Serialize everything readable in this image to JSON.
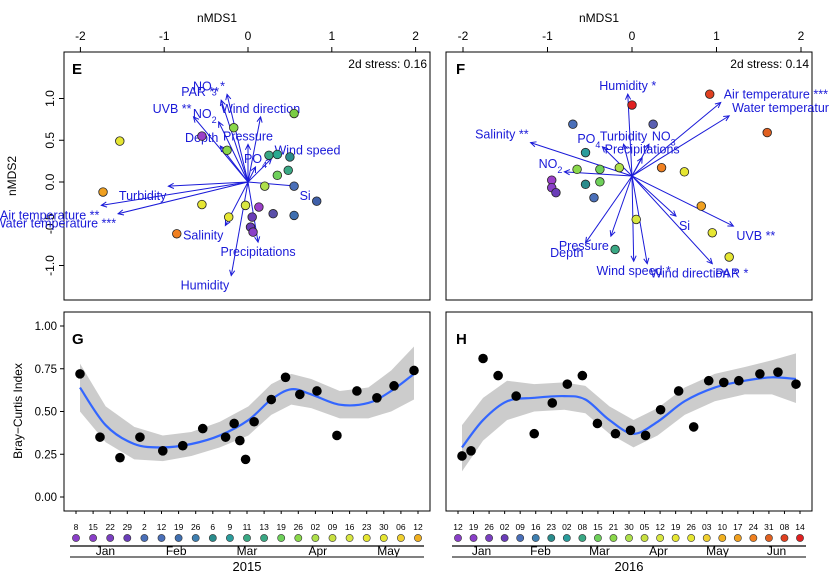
{
  "chart_data": [
    {
      "panel": "E",
      "type": "scatter",
      "xlabel": "nMDS1",
      "ylabel": "nMDS2",
      "xlim": [
        -2,
        2
      ],
      "ylim": [
        -1.25,
        1.25
      ],
      "x_ticks": [
        "-2",
        "-1",
        "0",
        "1",
        "2"
      ],
      "y_ticks": [
        "1.0",
        "0.5",
        "0.0",
        "-0.5",
        "-1.0"
      ],
      "stress": "2d stress: 0.16",
      "origin": [
        0,
        0
      ],
      "vectors": [
        {
          "label": "PAR **",
          "x": -0.32,
          "y": 0.98
        },
        {
          "label": "NO3 *",
          "x": -0.25,
          "y": 1.05
        },
        {
          "label": "UVB **",
          "x": -0.65,
          "y": 0.78
        },
        {
          "label": "NO2",
          "x": -0.35,
          "y": 0.72
        },
        {
          "label": "Wind direction",
          "x": 0.15,
          "y": 0.78
        },
        {
          "label": "Pressure",
          "x": 0.0,
          "y": 0.45
        },
        {
          "label": "Wind speed",
          "x": 0.28,
          "y": 0.28
        },
        {
          "label": "Depth",
          "x": -0.33,
          "y": 0.43
        },
        {
          "label": "PO4",
          "x": 0.09,
          "y": 0.18
        },
        {
          "label": "Si",
          "x": 0.58,
          "y": -0.05
        },
        {
          "label": "Turbidity",
          "x": -0.95,
          "y": -0.05
        },
        {
          "label": "Air temperature **",
          "x": -1.75,
          "y": -0.28
        },
        {
          "label": "Water temperature ***",
          "x": -1.55,
          "y": -0.38
        },
        {
          "label": "Salinity",
          "x": -0.27,
          "y": -0.52
        },
        {
          "label": "Precipitations",
          "x": 0.12,
          "y": -0.72
        },
        {
          "label": "Humidity",
          "x": -0.2,
          "y": -1.12
        }
      ],
      "points": [
        {
          "x": -1.53,
          "y": 0.49,
          "color": "#e6e632"
        },
        {
          "x": -0.55,
          "y": 0.55,
          "color": "#9b3fc8"
        },
        {
          "x": -0.17,
          "y": 0.65,
          "color": "#8ad84a"
        },
        {
          "x": 0.55,
          "y": 0.82,
          "color": "#7acc44"
        },
        {
          "x": -0.25,
          "y": 0.38,
          "color": "#8ad84a"
        },
        {
          "x": 0.25,
          "y": 0.32,
          "color": "#3aa884"
        },
        {
          "x": 0.35,
          "y": 0.33,
          "color": "#2aaa90"
        },
        {
          "x": 0.5,
          "y": 0.3,
          "color": "#2a8c8c"
        },
        {
          "x": 0.48,
          "y": 0.14,
          "color": "#3aa884"
        },
        {
          "x": 0.35,
          "y": 0.08,
          "color": "#6ed05a"
        },
        {
          "x": 0.2,
          "y": -0.05,
          "color": "#aee04a"
        },
        {
          "x": 0.55,
          "y": -0.05,
          "color": "#4a6fb8"
        },
        {
          "x": 0.82,
          "y": -0.23,
          "color": "#3f5fa8"
        },
        {
          "x": -1.73,
          "y": -0.12,
          "color": "#f0a020"
        },
        {
          "x": -0.55,
          "y": -0.27,
          "color": "#e6e632"
        },
        {
          "x": -0.03,
          "y": -0.28,
          "color": "#d8e640"
        },
        {
          "x": -0.23,
          "y": -0.42,
          "color": "#e6e632"
        },
        {
          "x": 0.13,
          "y": -0.3,
          "color": "#9b3fc8"
        },
        {
          "x": 0.05,
          "y": -0.42,
          "color": "#6a3db8"
        },
        {
          "x": 0.3,
          "y": -0.38,
          "color": "#5a4fa8"
        },
        {
          "x": 0.55,
          "y": -0.4,
          "color": "#3f6fb0"
        },
        {
          "x": 0.03,
          "y": -0.54,
          "color": "#6a3db8"
        },
        {
          "x": 0.06,
          "y": -0.6,
          "color": "#8a3fc8"
        },
        {
          "x": -0.85,
          "y": -0.62,
          "color": "#f08020"
        }
      ]
    },
    {
      "panel": "F",
      "type": "scatter",
      "xlabel": "nMDS1",
      "xlim": [
        -2,
        2
      ],
      "ylim": [
        -1.25,
        1.25
      ],
      "x_ticks": [
        "-2",
        "-1",
        "0",
        "1",
        "2"
      ],
      "stress": "2d stress: 0.14",
      "origin": [
        0,
        0
      ],
      "vectors": [
        {
          "label": "Humidity *",
          "x": -0.05,
          "y": 0.98
        },
        {
          "label": "Air temperature ***",
          "x": 1.05,
          "y": 0.88
        },
        {
          "label": "Water temperature ***",
          "x": 1.15,
          "y": 0.72
        },
        {
          "label": "Salinity **",
          "x": -1.2,
          "y": 0.4
        },
        {
          "label": "PO4",
          "x": -0.35,
          "y": 0.35
        },
        {
          "label": "Turbidity",
          "x": -0.1,
          "y": 0.38
        },
        {
          "label": "NO3",
          "x": 0.2,
          "y": 0.38
        },
        {
          "label": "Precipitations",
          "x": 0.12,
          "y": 0.22
        },
        {
          "label": "NO2",
          "x": -0.8,
          "y": 0.05
        },
        {
          "label": "Si",
          "x": 0.52,
          "y": -0.48
        },
        {
          "label": "UVB **",
          "x": 1.2,
          "y": -0.6
        },
        {
          "label": "Depth",
          "x": -0.55,
          "y": -0.8
        },
        {
          "label": "Pressure",
          "x": -0.25,
          "y": -0.72
        },
        {
          "label": "Wind speed *",
          "x": 0.02,
          "y": -1.02
        },
        {
          "label": "Wind direction *",
          "x": 0.18,
          "y": -1.05
        },
        {
          "label": "PAR *",
          "x": 0.95,
          "y": -1.05
        }
      ],
      "points": [
        {
          "x": 0.0,
          "y": 0.85,
          "color": "#e02020"
        },
        {
          "x": 0.92,
          "y": 0.98,
          "color": "#e04020"
        },
        {
          "x": 1.6,
          "y": 0.52,
          "color": "#e06020"
        },
        {
          "x": -0.7,
          "y": 0.62,
          "color": "#4a6fb8"
        },
        {
          "x": 0.25,
          "y": 0.62,
          "color": "#5a5fb0"
        },
        {
          "x": -0.55,
          "y": 0.28,
          "color": "#2a9c9c"
        },
        {
          "x": -0.65,
          "y": 0.08,
          "color": "#8ad84a"
        },
        {
          "x": -0.38,
          "y": 0.08,
          "color": "#6ed05a"
        },
        {
          "x": -0.15,
          "y": 0.1,
          "color": "#aee04a"
        },
        {
          "x": 0.35,
          "y": 0.1,
          "color": "#f08020"
        },
        {
          "x": 0.62,
          "y": 0.05,
          "color": "#e6e632"
        },
        {
          "x": -0.38,
          "y": -0.07,
          "color": "#6ed05a"
        },
        {
          "x": -0.55,
          "y": -0.1,
          "color": "#2a8c8c"
        },
        {
          "x": -0.95,
          "y": -0.05,
          "color": "#9b3fc8"
        },
        {
          "x": -0.95,
          "y": -0.14,
          "color": "#8a3fc8"
        },
        {
          "x": -0.9,
          "y": -0.2,
          "color": "#6a3db8"
        },
        {
          "x": -0.45,
          "y": -0.26,
          "color": "#4a6fb8"
        },
        {
          "x": 0.05,
          "y": -0.52,
          "color": "#d8e640"
        },
        {
          "x": 0.82,
          "y": -0.36,
          "color": "#f0a020"
        },
        {
          "x": 0.95,
          "y": -0.68,
          "color": "#e6e632"
        },
        {
          "x": 1.15,
          "y": -0.97,
          "color": "#e6e632"
        },
        {
          "x": -0.2,
          "y": -0.88,
          "color": "#3aa884"
        }
      ]
    },
    {
      "panel": "G",
      "type": "scatter",
      "ylabel": "Bray−Curtis Index",
      "ylim": [
        0,
        1
      ],
      "y_ticks": [
        "0.00",
        "0.25",
        "0.50",
        "0.75",
        "1.00"
      ],
      "x_ticks": [
        "8",
        "15",
        "22",
        "29",
        "2",
        "12",
        "19",
        "26",
        "6",
        "9",
        "11",
        "13",
        "19",
        "26",
        "02",
        "09",
        "16",
        "23",
        "30",
        "06",
        "12"
      ],
      "tick_colors": [
        "#8a3fc8",
        "#8a3fc8",
        "#7a3fc0",
        "#6a3db8",
        "#4a6fb8",
        "#4a6fb8",
        "#3f6fb0",
        "#3f7fb0",
        "#2a8c8c",
        "#2a9c9c",
        "#3aa884",
        "#3aa884",
        "#6ed05a",
        "#8ad84a",
        "#aee04a",
        "#c8e040",
        "#d8e640",
        "#e6e632",
        "#e6e632",
        "#f0d030",
        "#f0b020"
      ],
      "months": [
        "Jan",
        "Feb",
        "Mar",
        "Apr",
        "May"
      ],
      "year": "2015",
      "points": [
        {
          "x": 1,
          "y": 0.72
        },
        {
          "x": 8,
          "y": 0.35
        },
        {
          "x": 15,
          "y": 0.23
        },
        {
          "x": 22,
          "y": 0.35
        },
        {
          "x": 30,
          "y": 0.27
        },
        {
          "x": 37,
          "y": 0.3
        },
        {
          "x": 44,
          "y": 0.4
        },
        {
          "x": 52,
          "y": 0.35
        },
        {
          "x": 55,
          "y": 0.43
        },
        {
          "x": 57,
          "y": 0.33
        },
        {
          "x": 59,
          "y": 0.22
        },
        {
          "x": 62,
          "y": 0.44
        },
        {
          "x": 68,
          "y": 0.57
        },
        {
          "x": 73,
          "y": 0.7
        },
        {
          "x": 78,
          "y": 0.6
        },
        {
          "x": 84,
          "y": 0.62
        },
        {
          "x": 91,
          "y": 0.36
        },
        {
          "x": 98,
          "y": 0.62
        },
        {
          "x": 105,
          "y": 0.58
        },
        {
          "x": 111,
          "y": 0.65
        },
        {
          "x": 118,
          "y": 0.74
        }
      ],
      "smooth": [
        {
          "x": 1,
          "y": 0.64,
          "lo": 0.5,
          "hi": 0.78
        },
        {
          "x": 10,
          "y": 0.42,
          "lo": 0.32,
          "hi": 0.53
        },
        {
          "x": 20,
          "y": 0.31,
          "lo": 0.22,
          "hi": 0.41
        },
        {
          "x": 30,
          "y": 0.29,
          "lo": 0.21,
          "hi": 0.36
        },
        {
          "x": 40,
          "y": 0.31,
          "lo": 0.24,
          "hi": 0.38
        },
        {
          "x": 50,
          "y": 0.36,
          "lo": 0.29,
          "hi": 0.44
        },
        {
          "x": 60,
          "y": 0.45,
          "lo": 0.36,
          "hi": 0.53
        },
        {
          "x": 68,
          "y": 0.57,
          "lo": 0.48,
          "hi": 0.66
        },
        {
          "x": 75,
          "y": 0.63,
          "lo": 0.54,
          "hi": 0.72
        },
        {
          "x": 82,
          "y": 0.6,
          "lo": 0.52,
          "hi": 0.69
        },
        {
          "x": 92,
          "y": 0.54,
          "lo": 0.46,
          "hi": 0.62
        },
        {
          "x": 102,
          "y": 0.55,
          "lo": 0.46,
          "hi": 0.64
        },
        {
          "x": 110,
          "y": 0.62,
          "lo": 0.5,
          "hi": 0.74
        },
        {
          "x": 118,
          "y": 0.72,
          "lo": 0.57,
          "hi": 0.88
        }
      ]
    },
    {
      "panel": "H",
      "type": "scatter",
      "ylim": [
        0,
        1
      ],
      "x_ticks": [
        "12",
        "19",
        "26",
        "02",
        "09",
        "16",
        "23",
        "02",
        "08",
        "15",
        "21",
        "30",
        "05",
        "12",
        "19",
        "26",
        "03",
        "10",
        "17",
        "24",
        "31",
        "08",
        "14"
      ],
      "tick_colors": [
        "#8a3fc8",
        "#8a3fc8",
        "#7a3fc0",
        "#6a3db8",
        "#4a6fb8",
        "#3f7fb0",
        "#2a8c8c",
        "#2a9c9c",
        "#3aa884",
        "#6ed05a",
        "#8ad84a",
        "#aee04a",
        "#c8e040",
        "#d8e640",
        "#e6e632",
        "#e6e632",
        "#f0d030",
        "#f0b020",
        "#f0a020",
        "#f08020",
        "#e06020",
        "#e04020",
        "#e02020"
      ],
      "months": [
        "Jan",
        "Feb",
        "Mar",
        "Apr",
        "May",
        "Jun"
      ],
      "year": "2016",
      "points": [
        {
          "x": 1,
          "y": 0.24
        },
        {
          "x": 4,
          "y": 0.27
        },
        {
          "x": 8,
          "y": 0.81
        },
        {
          "x": 13,
          "y": 0.71
        },
        {
          "x": 19,
          "y": 0.59
        },
        {
          "x": 25,
          "y": 0.37
        },
        {
          "x": 31,
          "y": 0.55
        },
        {
          "x": 36,
          "y": 0.66
        },
        {
          "x": 41,
          "y": 0.71
        },
        {
          "x": 46,
          "y": 0.43
        },
        {
          "x": 52,
          "y": 0.37
        },
        {
          "x": 57,
          "y": 0.39
        },
        {
          "x": 62,
          "y": 0.36
        },
        {
          "x": 67,
          "y": 0.51
        },
        {
          "x": 73,
          "y": 0.62
        },
        {
          "x": 78,
          "y": 0.41
        },
        {
          "x": 83,
          "y": 0.68
        },
        {
          "x": 88,
          "y": 0.67
        },
        {
          "x": 93,
          "y": 0.68
        },
        {
          "x": 100,
          "y": 0.72
        },
        {
          "x": 106,
          "y": 0.73
        },
        {
          "x": 112,
          "y": 0.66
        }
      ],
      "smooth": [
        {
          "x": 1,
          "y": 0.29,
          "lo": 0.15,
          "hi": 0.42
        },
        {
          "x": 8,
          "y": 0.45,
          "lo": 0.33,
          "hi": 0.58
        },
        {
          "x": 16,
          "y": 0.56,
          "lo": 0.45,
          "hi": 0.68
        },
        {
          "x": 25,
          "y": 0.58,
          "lo": 0.5,
          "hi": 0.66
        },
        {
          "x": 35,
          "y": 0.59,
          "lo": 0.51,
          "hi": 0.67
        },
        {
          "x": 42,
          "y": 0.57,
          "lo": 0.49,
          "hi": 0.65
        },
        {
          "x": 50,
          "y": 0.45,
          "lo": 0.37,
          "hi": 0.53
        },
        {
          "x": 58,
          "y": 0.37,
          "lo": 0.29,
          "hi": 0.45
        },
        {
          "x": 66,
          "y": 0.44,
          "lo": 0.36,
          "hi": 0.52
        },
        {
          "x": 75,
          "y": 0.56,
          "lo": 0.48,
          "hi": 0.64
        },
        {
          "x": 85,
          "y": 0.64,
          "lo": 0.56,
          "hi": 0.72
        },
        {
          "x": 95,
          "y": 0.68,
          "lo": 0.6,
          "hi": 0.76
        },
        {
          "x": 104,
          "y": 0.7,
          "lo": 0.6,
          "hi": 0.8
        },
        {
          "x": 112,
          "y": 0.69,
          "lo": 0.55,
          "hi": 0.84
        }
      ]
    }
  ],
  "colors": {
    "vector": "#1a1ad8",
    "smooth": "#3366ff",
    "band": "#cccccc",
    "point": "#000000"
  }
}
